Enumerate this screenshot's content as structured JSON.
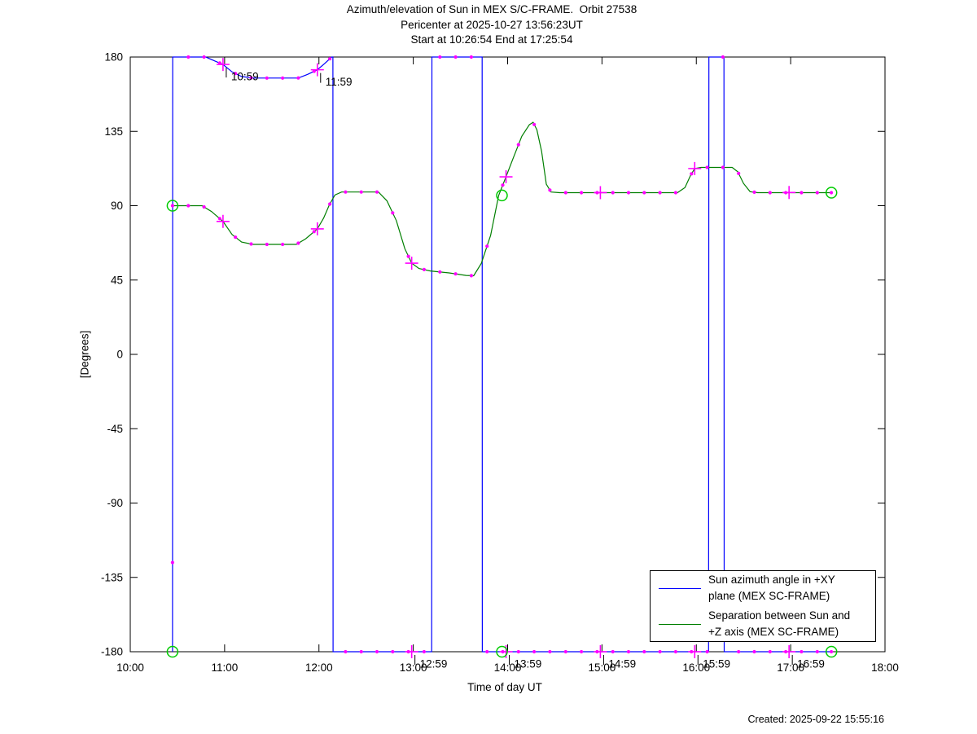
{
  "title": {
    "line1": "Azimuth/elevation of Sun in MEX S/C-FRAME.  Orbit 27538",
    "line2": "Pericenter at 2025-10-27 13:56:23UT",
    "line3": "Start at 10:26:54 End at 17:25:54"
  },
  "footer": {
    "created": "Created: 2025-09-22 15:55:16"
  },
  "legend": {
    "items": [
      {
        "name": "azimuth",
        "color": "#0000ff",
        "line1": "Sun azimuth angle in +XY",
        "line2": "plane (MEX SC-FRAME)"
      },
      {
        "name": "separation",
        "color": "#007f00",
        "line1": "Separation between Sun and",
        "line2": "+Z axis (MEX SC-FRAME)"
      }
    ]
  },
  "chart_data": {
    "type": "line",
    "title": "Azimuth/elevation of Sun in MEX S/C-FRAME.  Orbit 27538",
    "xlabel": "Time of day UT",
    "ylabel": "[Degrees]",
    "x_unit": "hours UT (decimal)",
    "x_range": [
      10,
      18
    ],
    "y_range": [
      -180,
      180
    ],
    "grid": false,
    "legend_position": "lower-right",
    "x_ticks": [
      {
        "t": 10,
        "label": "10:00"
      },
      {
        "t": 11,
        "label": "11:00"
      },
      {
        "t": 12,
        "label": "12:00"
      },
      {
        "t": 13,
        "label": "13:00"
      },
      {
        "t": 14,
        "label": "14:00"
      },
      {
        "t": 15,
        "label": "15:00"
      },
      {
        "t": 16,
        "label": "16:00"
      },
      {
        "t": 17,
        "label": "17:00"
      },
      {
        "t": 18,
        "label": "18:00"
      }
    ],
    "y_ticks": [
      {
        "v": 180,
        "label": "180"
      },
      {
        "v": 135,
        "label": "135"
      },
      {
        "v": 90,
        "label": "90"
      },
      {
        "v": 45,
        "label": "45"
      },
      {
        "v": 0,
        "label": "0"
      },
      {
        "v": -45,
        "label": "-45"
      },
      {
        "v": -90,
        "label": "-90"
      },
      {
        "v": -135,
        "label": "-135"
      },
      {
        "v": -180,
        "label": "-180"
      }
    ],
    "marker_color": "#ff00ff",
    "endpoint_marker_color": "#00cc00",
    "minute_dot_interval_hours": 0.1666667,
    "start_time_hours": 10.4483,
    "end_time_hours": 17.4317,
    "series": [
      {
        "name": "Sun azimuth angle in +XY plane (MEX SC-FRAME)",
        "color": "#0000ff",
        "points": [
          [
            10.448,
            -180
          ],
          [
            10.45,
            180
          ],
          [
            10.8,
            180
          ],
          [
            10.9,
            177.5
          ],
          [
            10.983,
            175.5
          ],
          [
            11.08,
            171
          ],
          [
            11.18,
            168.2
          ],
          [
            11.3,
            167.3
          ],
          [
            11.78,
            167.3
          ],
          [
            11.88,
            169.5
          ],
          [
            11.983,
            172.3
          ],
          [
            12.06,
            176
          ],
          [
            12.135,
            180
          ],
          [
            12.148,
            180
          ],
          [
            12.15,
            -180
          ],
          [
            13.195,
            -180
          ],
          [
            13.197,
            180
          ],
          [
            13.73,
            180
          ],
          [
            13.732,
            -180
          ],
          [
            16.13,
            -180
          ],
          [
            16.133,
            180
          ],
          [
            16.293,
            180
          ],
          [
            16.296,
            -180
          ],
          [
            17.432,
            -180
          ]
        ],
        "hour_plus_markers": [
          [
            10.983,
            175.5
          ],
          [
            11.983,
            172.3
          ],
          [
            12.983,
            -180
          ],
          [
            13.983,
            -180
          ],
          [
            14.983,
            -180
          ],
          [
            15.983,
            -180
          ],
          [
            16.983,
            -180
          ]
        ],
        "endpoint_circles": [
          [
            10.448,
            -180
          ],
          [
            13.94,
            -180
          ],
          [
            17.432,
            -180
          ]
        ]
      },
      {
        "name": "Separation between Sun and +Z axis (MEX SC-FRAME)",
        "color": "#007f00",
        "points": [
          [
            10.448,
            90
          ],
          [
            10.76,
            90
          ],
          [
            10.86,
            86.5
          ],
          [
            10.983,
            80.5
          ],
          [
            11.08,
            72.5
          ],
          [
            11.18,
            68
          ],
          [
            11.3,
            66.6
          ],
          [
            11.76,
            66.6
          ],
          [
            11.86,
            70
          ],
          [
            11.983,
            76
          ],
          [
            12.05,
            82.5
          ],
          [
            12.11,
            90.5
          ],
          [
            12.17,
            96.5
          ],
          [
            12.24,
            98.3
          ],
          [
            12.63,
            98.3
          ],
          [
            12.72,
            93
          ],
          [
            12.82,
            81
          ],
          [
            12.91,
            64
          ],
          [
            12.983,
            55.2
          ],
          [
            13.06,
            52
          ],
          [
            13.18,
            50.5
          ],
          [
            13.38,
            49.3
          ],
          [
            13.56,
            47.8
          ],
          [
            13.64,
            47.6
          ],
          [
            13.72,
            55
          ],
          [
            13.82,
            72
          ],
          [
            13.905,
            96.2
          ],
          [
            13.983,
            107.5
          ],
          [
            14.06,
            119
          ],
          [
            14.15,
            132
          ],
          [
            14.23,
            139
          ],
          [
            14.27,
            140.5
          ],
          [
            14.31,
            136
          ],
          [
            14.36,
            123
          ],
          [
            14.41,
            103
          ],
          [
            14.46,
            98.3
          ],
          [
            14.55,
            97.9
          ],
          [
            15.8,
            97.9
          ],
          [
            15.88,
            101
          ],
          [
            15.94,
            108.5
          ],
          [
            15.983,
            112.5
          ],
          [
            16.05,
            113.2
          ],
          [
            16.38,
            113.2
          ],
          [
            16.44,
            110.5
          ],
          [
            16.5,
            103.5
          ],
          [
            16.57,
            98.5
          ],
          [
            16.65,
            97.9
          ],
          [
            17.432,
            97.9
          ]
        ],
        "hour_plus_markers": [
          [
            10.983,
            80.5
          ],
          [
            11.983,
            76
          ],
          [
            12.983,
            55.2
          ],
          [
            13.983,
            107.5
          ],
          [
            14.983,
            97.9
          ],
          [
            15.983,
            112.5
          ],
          [
            16.983,
            98
          ]
        ],
        "endpoint_circles": [
          [
            10.448,
            90
          ],
          [
            13.94,
            96.2
          ],
          [
            17.432,
            97.9
          ]
        ]
      }
    ],
    "annotations": [
      {
        "label": "10:59",
        "t": 10.983,
        "v": 175.5
      },
      {
        "label": "11:59",
        "t": 11.983,
        "v": 172.3
      },
      {
        "label": "12:59",
        "t": 12.983,
        "v": -180
      },
      {
        "label": "13:59",
        "t": 13.983,
        "v": -180
      },
      {
        "label": "14:59",
        "t": 14.983,
        "v": -180
      },
      {
        "label": "15:59",
        "t": 15.983,
        "v": -180
      },
      {
        "label": "16:59",
        "t": 16.983,
        "v": -180
      }
    ]
  }
}
